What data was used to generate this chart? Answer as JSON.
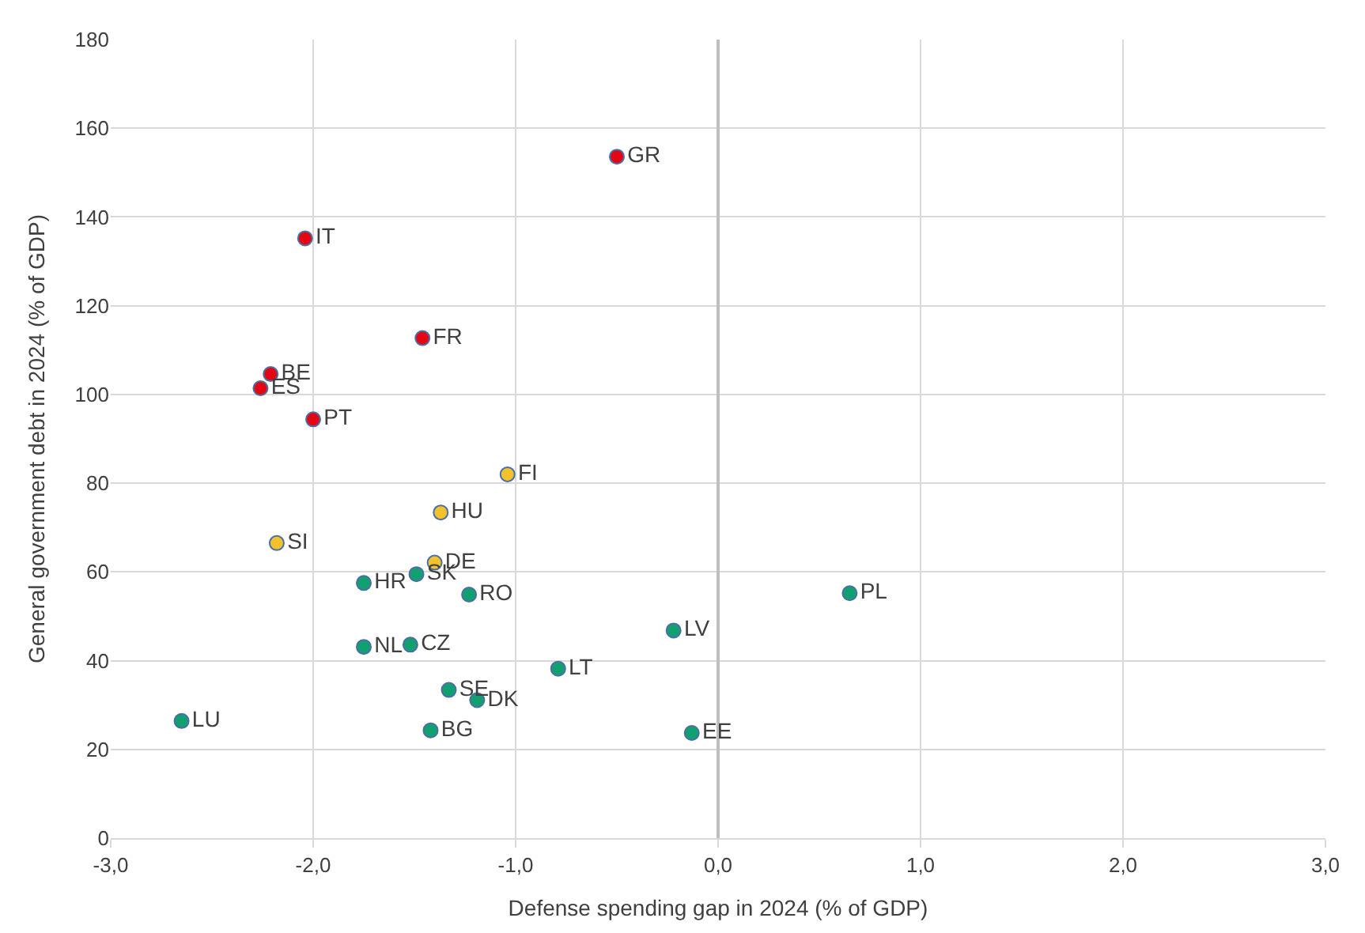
{
  "chart_data": {
    "type": "scatter",
    "xlabel": "Defense spending gap in 2024 (% of GDP)",
    "ylabel": "General government debt in 2024 (% of GDP)",
    "xlim": [
      -3,
      3
    ],
    "xticks": [
      {
        "value": -3,
        "label": "-3,0"
      },
      {
        "value": -2,
        "label": "-2,0"
      },
      {
        "value": -1,
        "label": "-1,0"
      },
      {
        "value": 0,
        "label": "0,0"
      },
      {
        "value": 1,
        "label": "1,0"
      },
      {
        "value": 2,
        "label": "2,0"
      },
      {
        "value": 3,
        "label": "3,0"
      }
    ],
    "ylim": [
      0,
      180
    ],
    "yticks": [
      0,
      20,
      40,
      60,
      80,
      100,
      120,
      140,
      160,
      180
    ],
    "grid": true,
    "marker": "circle",
    "series": [
      {
        "color": "#e30613",
        "x": [
          -0.5,
          -2.04,
          -1.46,
          -2.21,
          -2.26,
          -2.0
        ],
        "values": [
          153.6,
          135.2,
          112.7,
          104.6,
          101.4,
          94.4
        ],
        "value_labels": [
          "GR",
          "IT",
          "FR",
          "BE",
          "ES",
          "PT"
        ]
      },
      {
        "color": "#f2c12e",
        "x": [
          -1.04,
          -1.37,
          -2.18,
          -1.4
        ],
        "values": [
          82.0,
          73.4,
          66.5,
          62.1
        ],
        "value_labels": [
          "FI",
          "HU",
          "SI",
          "DE"
        ]
      },
      {
        "color": "#12a070",
        "x": [
          -1.75,
          -1.49,
          -1.23,
          0.65,
          -0.22,
          -1.75,
          -1.52,
          -0.79,
          -1.33,
          -1.19,
          -2.65,
          -1.42,
          -0.13
        ],
        "values": [
          57.5,
          59.5,
          54.9,
          55.2,
          46.8,
          43.1,
          43.6,
          38.2,
          33.4,
          31.1,
          26.4,
          24.3,
          23.7
        ],
        "value_labels": [
          "HR",
          "SK",
          "RO",
          "PL",
          "LV",
          "NL",
          "CZ",
          "LT",
          "SE",
          "DK",
          "LU",
          "BG",
          "EE"
        ]
      }
    ]
  }
}
